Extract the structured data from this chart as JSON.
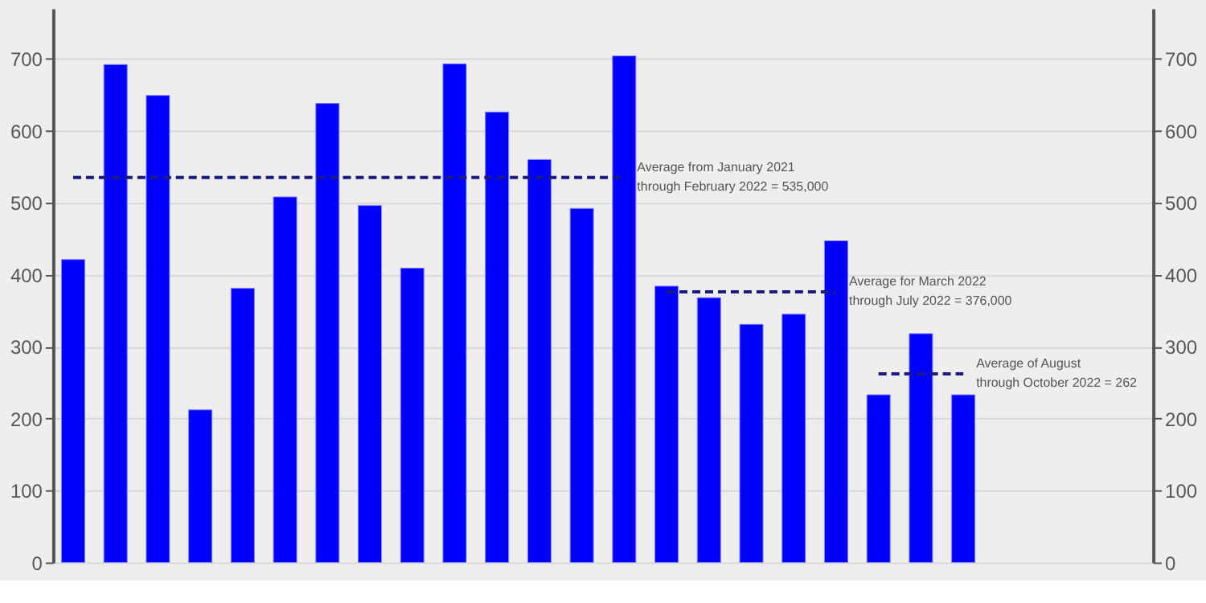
{
  "chart_data": {
    "type": "bar",
    "categories": [
      null,
      null,
      null,
      null,
      null,
      null,
      null,
      null,
      null,
      null,
      null,
      null,
      null,
      null,
      null,
      null,
      null,
      null,
      null,
      null,
      null,
      null,
      null,
      null,
      null,
      null
    ],
    "series": [
      {
        "color": "#0000ff",
        "values": [
          421,
          692,
          649,
          212,
          381,
          508,
          638,
          496,
          409,
          693,
          626,
          560,
          492,
          704,
          384,
          368,
          331,
          345,
          447,
          233,
          318,
          233,
          null,
          null,
          null,
          null
        ]
      },
      {
        "type": "line",
        "name": "Average from January 2021\nthrough February 2022 = 535,000",
        "color": "#1a1a80",
        "line_style": "dashed",
        "values": [
          535,
          535,
          535,
          535,
          535,
          535,
          535,
          535,
          535,
          535,
          535,
          535,
          535,
          535,
          null,
          null,
          null,
          null,
          null,
          null,
          null,
          null,
          null,
          null,
          null,
          null
        ]
      },
      {
        "type": "line",
        "name": "Average for March 2022\nthrough July 2022 = 376,000",
        "color": "#1a1a80",
        "line_style": "dashed",
        "values": [
          null,
          null,
          null,
          null,
          null,
          null,
          null,
          null,
          null,
          null,
          null,
          null,
          null,
          null,
          376,
          376,
          376,
          376,
          376,
          null,
          null,
          null,
          null,
          null,
          null,
          null
        ]
      },
      {
        "type": "line",
        "name": "Average of August\nthrough October 2022 = 262",
        "color": "#1a1a80",
        "line_style": "dashed",
        "values": [
          null,
          null,
          null,
          null,
          null,
          null,
          null,
          null,
          null,
          null,
          null,
          null,
          null,
          null,
          null,
          null,
          null,
          null,
          null,
          262,
          262,
          262,
          null,
          null,
          null,
          null
        ]
      }
    ],
    "ylim": [
      0,
      770
    ],
    "yticks": [
      0,
      100,
      200,
      300,
      400,
      500,
      600,
      700
    ],
    "y2lim": [
      0,
      770
    ],
    "y2ticks": [
      0,
      100,
      200,
      300,
      400,
      500,
      600,
      700
    ],
    "grid": "y",
    "tick_labels": "y"
  }
}
